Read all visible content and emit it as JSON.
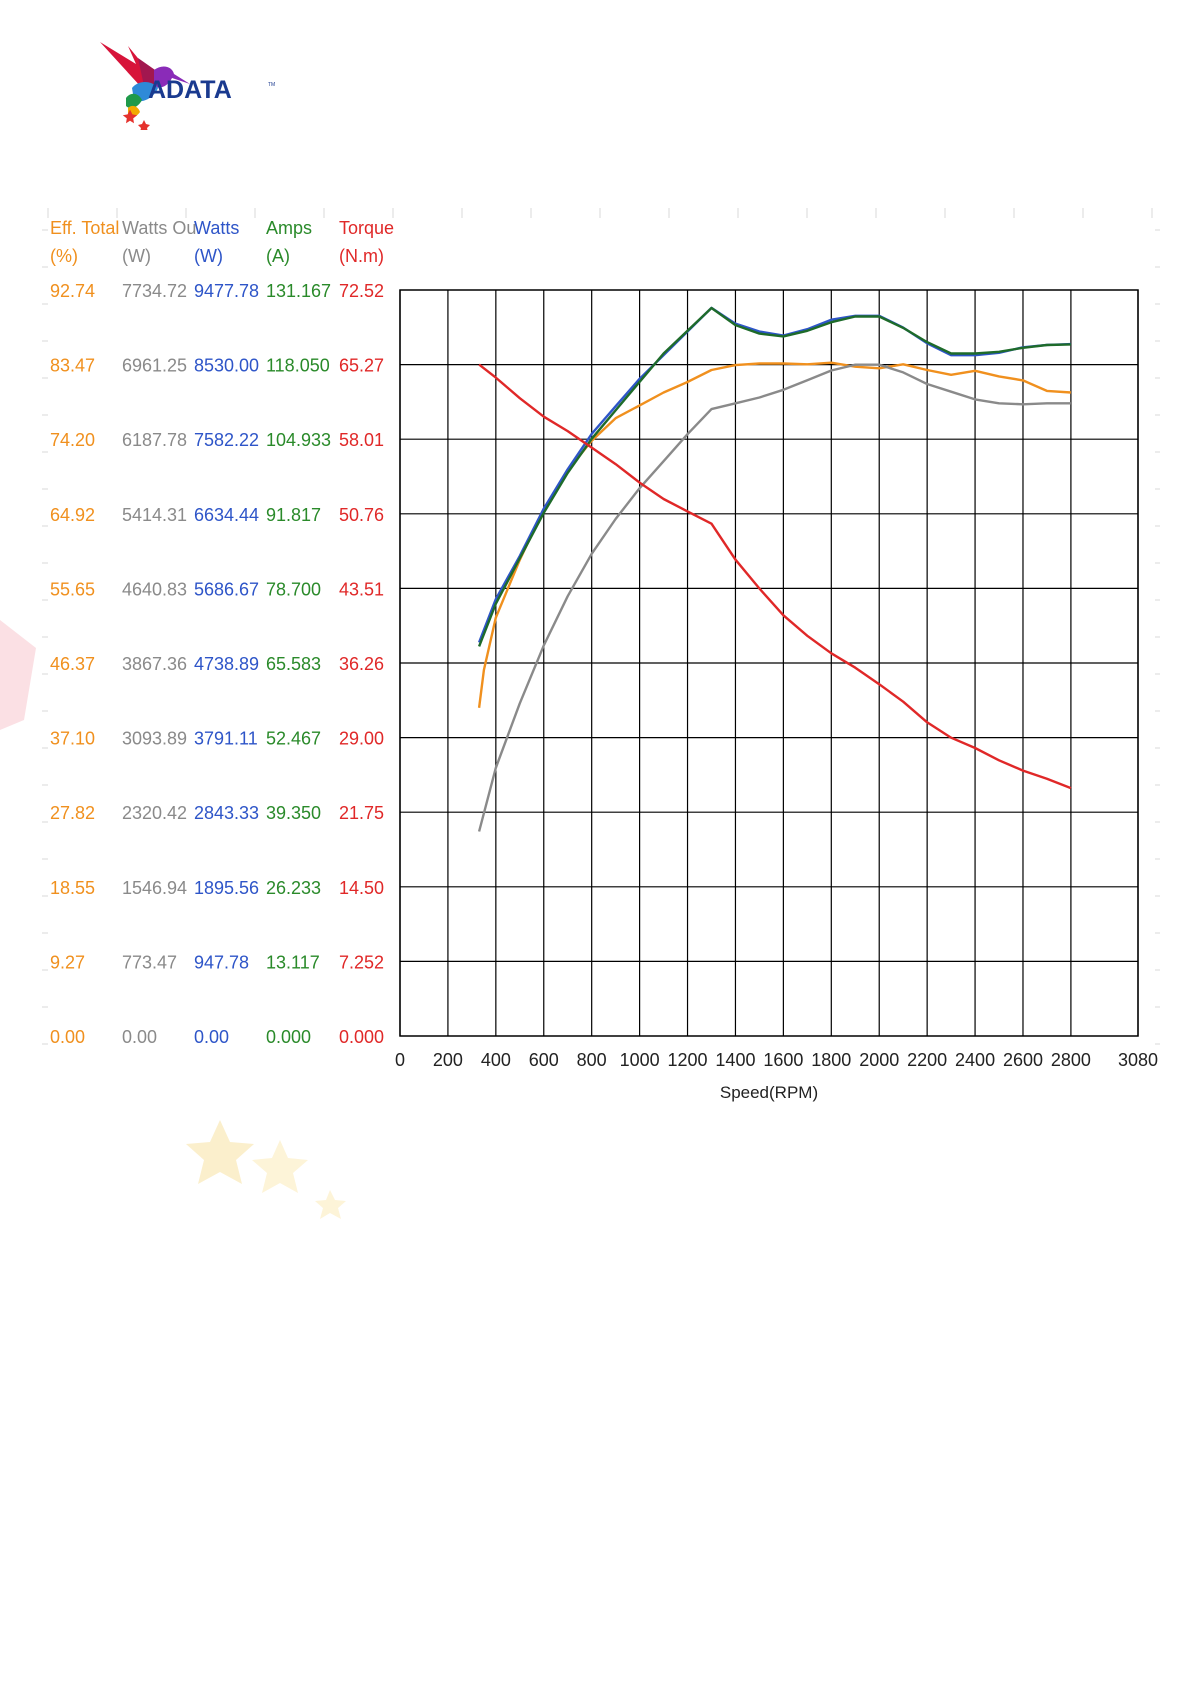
{
  "brand": {
    "name": "ADATA",
    "tm": "TM",
    "colors": [
      "#d7143a",
      "#8a2bb8",
      "#2e5bd8",
      "#1f9a4a",
      "#f2a900",
      "#e5322d",
      "#1a3a8f"
    ]
  },
  "chart_data": {
    "type": "line",
    "xlabel": "Speed(RPM)",
    "xlim": [
      0,
      3080
    ],
    "x_ticks": [
      "0",
      "200",
      "400",
      "600",
      "800",
      "1000",
      "1200",
      "1400",
      "1600",
      "1800",
      "2000",
      "2200",
      "2400",
      "2600",
      "2800",
      "3080"
    ],
    "grid": true,
    "y_axes": [
      {
        "header": "Eff. Total",
        "unit": "(%)",
        "color": "#f0901e",
        "ticks": [
          "0.00",
          "9.27",
          "18.55",
          "27.82",
          "37.10",
          "46.37",
          "55.65",
          "64.92",
          "74.20",
          "83.47",
          "92.74"
        ]
      },
      {
        "header": "Watts Ou",
        "unit": "(W)",
        "color": "#8a8a8a",
        "ticks": [
          "0.00",
          "773.47",
          "1546.94",
          "2320.42",
          "3093.89",
          "3867.36",
          "4640.83",
          "5414.31",
          "6187.78",
          "6961.25",
          "7734.72"
        ]
      },
      {
        "header": "Watts",
        "unit": "(W)",
        "color": "#2e55c8",
        "ticks": [
          "0.00",
          "947.78",
          "1895.56",
          "2843.33",
          "3791.11",
          "4738.89",
          "5686.67",
          "6634.44",
          "7582.22",
          "8530.00",
          "9477.78"
        ]
      },
      {
        "header": "Amps",
        "unit": "(A)",
        "color": "#2a8a2a",
        "ticks": [
          "0.000",
          "13.117",
          "26.233",
          "39.350",
          "52.467",
          "65.583",
          "78.700",
          "91.817",
          "104.933",
          "118.050",
          "131.167"
        ]
      },
      {
        "header": "Torque",
        "unit": "(N.m)",
        "color": "#e02828",
        "ticks": [
          "0.000",
          "7.252",
          "14.50",
          "21.75",
          "29.00",
          "36.26",
          "43.51",
          "50.76",
          "58.01",
          "65.27",
          "72.52"
        ]
      }
    ],
    "series": [
      {
        "axis": 0,
        "color": "#f0901e",
        "x": [
          330,
          350,
          400,
          500,
          600,
          700,
          800,
          900,
          1000,
          1100,
          1200,
          1300,
          1400,
          1500,
          1600,
          1700,
          1800,
          1900,
          2000,
          2100,
          2200,
          2300,
          2400,
          2500,
          2600,
          2700,
          2800
        ],
        "y": [
          40.8,
          45.5,
          52.0,
          59.2,
          65.5,
          70.3,
          74.0,
          76.8,
          78.4,
          80.0,
          81.3,
          82.8,
          83.4,
          83.6,
          83.6,
          83.5,
          83.7,
          83.2,
          83.0,
          83.5,
          82.8,
          82.2,
          82.7,
          82.0,
          81.5,
          80.2,
          80.0
        ]
      },
      {
        "axis": 1,
        "color": "#8a8a8a",
        "x": [
          330,
          400,
          500,
          600,
          700,
          800,
          900,
          1000,
          1100,
          1200,
          1300,
          1400,
          1500,
          1600,
          1700,
          1800,
          1900,
          2000,
          2100,
          2200,
          2300,
          2400,
          2500,
          2600,
          2700,
          2800
        ],
        "y": [
          2120,
          2780,
          3450,
          4050,
          4560,
          5000,
          5360,
          5680,
          5960,
          6240,
          6500,
          6560,
          6620,
          6700,
          6800,
          6900,
          6960,
          6960,
          6880,
          6760,
          6680,
          6600,
          6560,
          6550,
          6560,
          6560
        ]
      },
      {
        "axis": 2,
        "color": "#2e55c8",
        "x": [
          330,
          400,
          500,
          600,
          700,
          800,
          900,
          1000,
          1100,
          1200,
          1300,
          1400,
          1500,
          1600,
          1700,
          1800,
          1900,
          2000,
          2100,
          2200,
          2300,
          2400,
          2500,
          2600,
          2700,
          2800
        ],
        "y": [
          5000,
          5550,
          6100,
          6700,
          7200,
          7650,
          8000,
          8350,
          8650,
          8950,
          9250,
          9050,
          8950,
          8900,
          8980,
          9100,
          9150,
          9150,
          9000,
          8800,
          8650,
          8650,
          8680,
          8750,
          8780,
          8790
        ]
      },
      {
        "axis": 3,
        "color": "#1e6b2a",
        "x": [
          330,
          400,
          500,
          600,
          700,
          800,
          900,
          1000,
          1100,
          1200,
          1300,
          1400,
          1500,
          1600,
          1700,
          1800,
          1900,
          2000,
          2100,
          2200,
          2300,
          2400,
          2500,
          2600,
          2700,
          2800
        ],
        "y": [
          68.5,
          76.0,
          84.0,
          92.0,
          99.0,
          105.0,
          110.0,
          115.0,
          120.0,
          124.0,
          128.0,
          125.0,
          123.5,
          123.0,
          124.0,
          125.5,
          126.5,
          126.5,
          124.5,
          122.0,
          120.0,
          120.0,
          120.3,
          121.0,
          121.5,
          121.6
        ]
      },
      {
        "axis": 4,
        "color": "#e02828",
        "x": [
          330,
          400,
          500,
          600,
          700,
          800,
          900,
          1000,
          1100,
          1200,
          1300,
          1400,
          1500,
          1600,
          1700,
          1800,
          1900,
          2000,
          2100,
          2200,
          2300,
          2400,
          2500,
          2600,
          2700,
          2800
        ],
        "y": [
          65.27,
          64.0,
          62.0,
          60.2,
          58.8,
          57.2,
          55.6,
          53.8,
          52.2,
          51.0,
          49.8,
          46.3,
          43.5,
          40.9,
          38.9,
          37.2,
          35.8,
          34.2,
          32.5,
          30.5,
          29.0,
          28.0,
          26.8,
          25.8,
          25.0,
          24.1
        ]
      }
    ]
  }
}
